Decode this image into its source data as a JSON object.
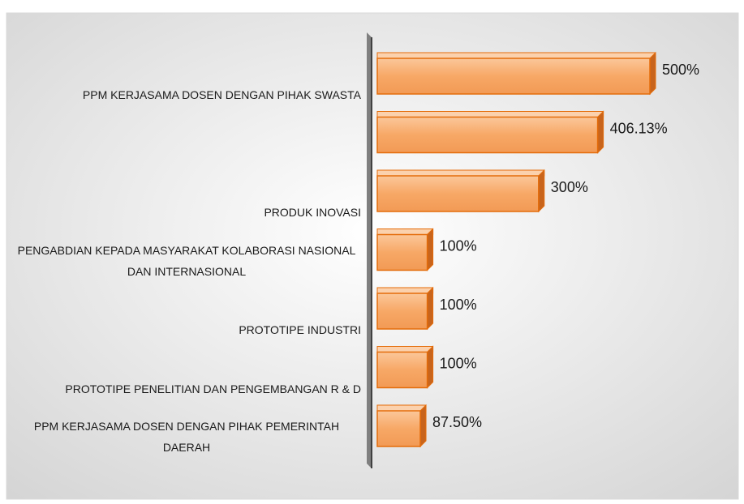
{
  "chart_data": {
    "type": "bar",
    "orientation": "horizontal",
    "categories": [
      "PPM KERJASAMA DOSEN DENGAN PIHAK SWASTA",
      null,
      "PRODUK INOVASI",
      "PENGABDIAN KEPADA MASYARAKAT KOLABORASI NASIONAL DAN INTERNASIONAL",
      "PROTOTIPE INDUSTRI",
      "PROTOTIPE PENELITIAN DAN PENGEMBANGAN R & D",
      "PPM KERJASAMA DOSEN DENGAN PIHAK PEMERINTAH DAERAH"
    ],
    "values": [
      500,
      406.13,
      300,
      100,
      100,
      100,
      87.5
    ],
    "value_labels": [
      "500%",
      "406.13%",
      "300%",
      "100%",
      "100%",
      "100%",
      "87.50%"
    ],
    "color": "#f7a15e"
  }
}
